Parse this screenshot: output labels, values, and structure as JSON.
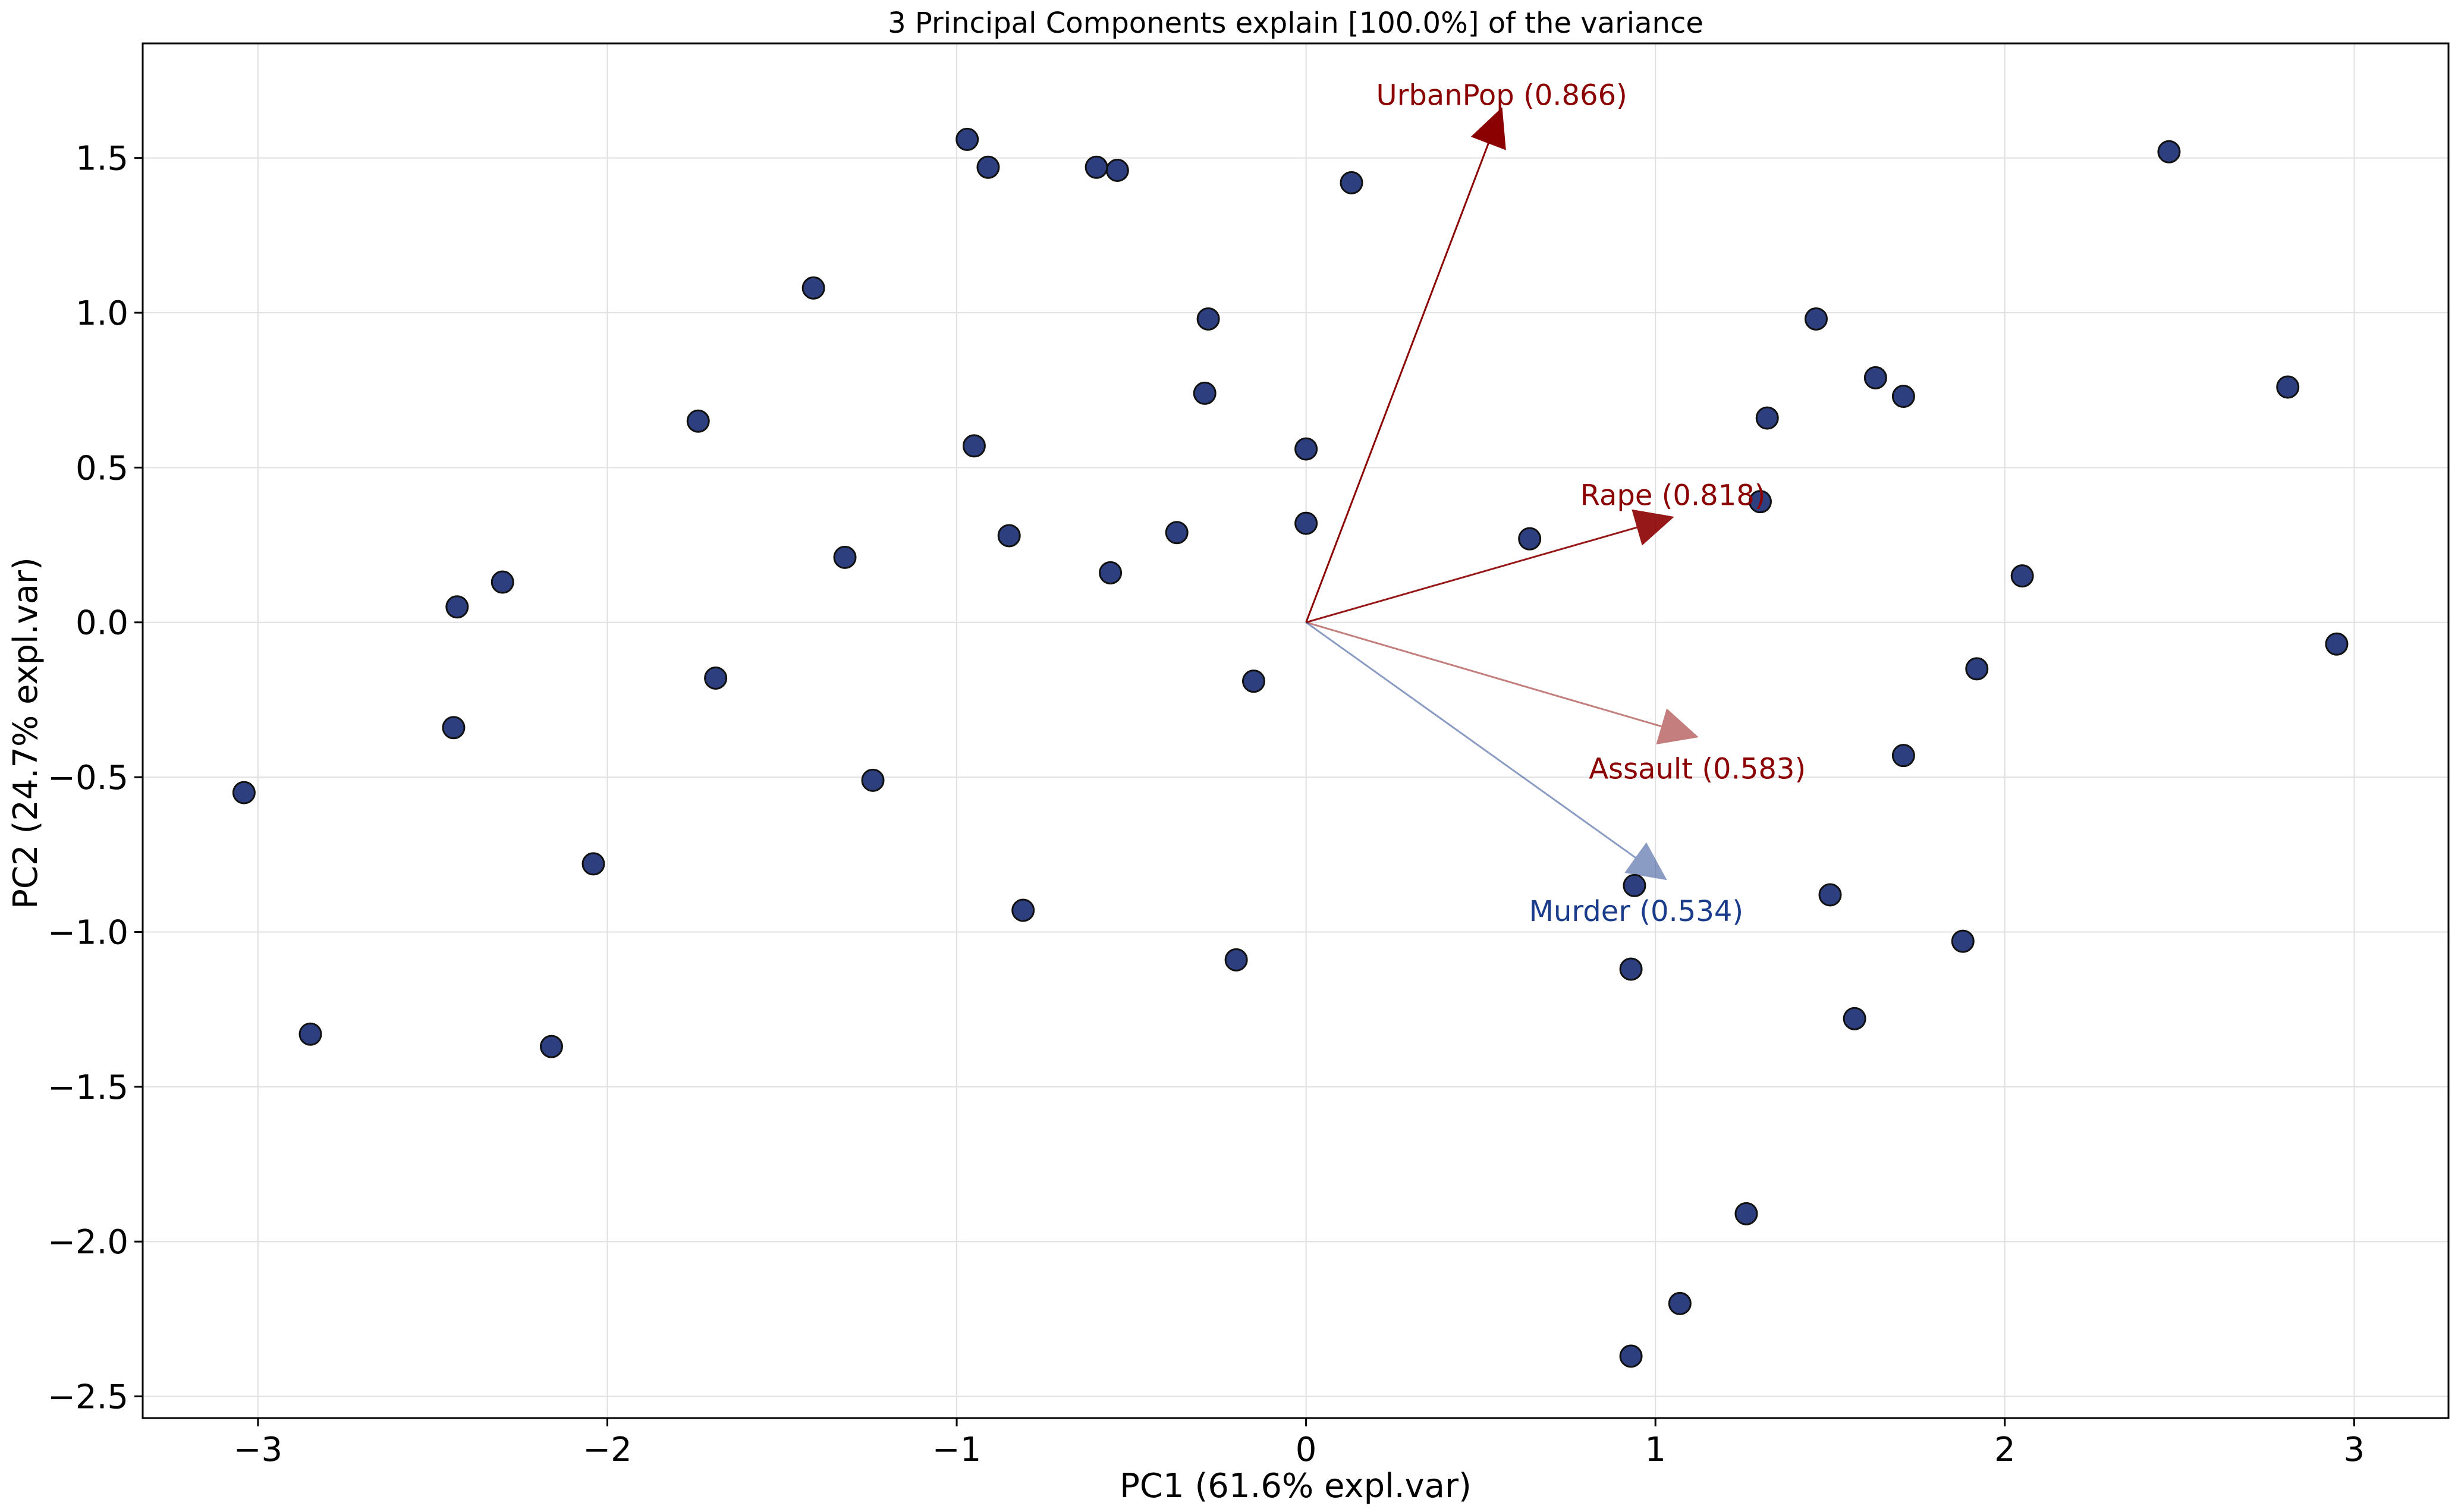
{
  "chart_data": {
    "type": "scatter",
    "title": "3 Principal Components explain [100.0%] of the variance",
    "xlabel": "PC1 (61.6% expl.var)",
    "ylabel": "PC2 (24.7% expl.var)",
    "xlim": [
      -3.33,
      3.27
    ],
    "ylim": [
      -2.57,
      1.87
    ],
    "xticks": [
      -3,
      -2,
      -1,
      0,
      1,
      2,
      3
    ],
    "xtick_labels": [
      "−3",
      "−2",
      "−1",
      "0",
      "1",
      "2",
      "3"
    ],
    "yticks": [
      -2.5,
      -2.0,
      -1.5,
      -1.0,
      -0.5,
      0.0,
      0.5,
      1.0,
      1.5
    ],
    "ytick_labels": [
      "−2.5",
      "−2.0",
      "−1.5",
      "−1.0",
      "−0.5",
      "0.0",
      "0.5",
      "1.0",
      "1.5"
    ],
    "grid": true,
    "point_color": "#2e3f7f",
    "points": [
      {
        "x": -3.04,
        "y": -0.55
      },
      {
        "x": -2.85,
        "y": -1.33
      },
      {
        "x": -2.43,
        "y": 0.05
      },
      {
        "x": -2.44,
        "y": -0.34
      },
      {
        "x": -2.3,
        "y": 0.13
      },
      {
        "x": -2.16,
        "y": -1.37
      },
      {
        "x": -2.04,
        "y": -0.78
      },
      {
        "x": -1.74,
        "y": 0.65
      },
      {
        "x": -1.69,
        "y": -0.18
      },
      {
        "x": -1.41,
        "y": 1.08
      },
      {
        "x": -1.32,
        "y": 0.21
      },
      {
        "x": -1.24,
        "y": -0.51
      },
      {
        "x": -0.97,
        "y": 1.56
      },
      {
        "x": -0.91,
        "y": 1.47
      },
      {
        "x": -0.95,
        "y": 0.57
      },
      {
        "x": -0.85,
        "y": 0.28
      },
      {
        "x": -0.81,
        "y": -0.93
      },
      {
        "x": -0.6,
        "y": 1.47
      },
      {
        "x": -0.54,
        "y": 1.46
      },
      {
        "x": -0.56,
        "y": 0.16
      },
      {
        "x": -0.37,
        "y": 0.29
      },
      {
        "x": -0.28,
        "y": 0.98
      },
      {
        "x": -0.29,
        "y": 0.74
      },
      {
        "x": -0.2,
        "y": -1.09
      },
      {
        "x": -0.15,
        "y": -0.19
      },
      {
        "x": 0.0,
        "y": 0.56
      },
      {
        "x": 0.0,
        "y": 0.32
      },
      {
        "x": 0.13,
        "y": 1.42
      },
      {
        "x": 0.64,
        "y": 0.27
      },
      {
        "x": 0.94,
        "y": -0.85
      },
      {
        "x": 0.93,
        "y": -1.12
      },
      {
        "x": 1.07,
        "y": -2.2
      },
      {
        "x": 0.93,
        "y": -2.37
      },
      {
        "x": 1.26,
        "y": -1.91
      },
      {
        "x": 1.3,
        "y": 0.39
      },
      {
        "x": 1.32,
        "y": 0.66
      },
      {
        "x": 1.46,
        "y": 0.98
      },
      {
        "x": 1.5,
        "y": -0.88
      },
      {
        "x": 1.57,
        "y": -1.28
      },
      {
        "x": 1.63,
        "y": 0.79
      },
      {
        "x": 1.71,
        "y": 0.73
      },
      {
        "x": 1.71,
        "y": -0.43
      },
      {
        "x": 1.88,
        "y": -1.03
      },
      {
        "x": 1.92,
        "y": -0.15
      },
      {
        "x": 2.05,
        "y": 0.15
      },
      {
        "x": 2.47,
        "y": 1.52
      },
      {
        "x": 2.81,
        "y": 0.76
      },
      {
        "x": 2.95,
        "y": -0.07
      }
    ],
    "loadings": [
      {
        "name": "UrbanPop",
        "label": "UrbanPop (0.866)",
        "x": 0.56,
        "y": 1.66,
        "color": "#8b0000",
        "opacity": 1.0
      },
      {
        "name": "Rape",
        "label": "Rape (0.818)",
        "x": 1.05,
        "y": 0.34,
        "color": "#8b0000",
        "opacity": 0.9
      },
      {
        "name": "Assault",
        "label": "Assault (0.583)",
        "x": 1.12,
        "y": -0.37,
        "color": "#8b0000",
        "opacity": 0.5
      },
      {
        "name": "Murder",
        "label": "Murder (0.534)",
        "x": 1.03,
        "y": -0.83,
        "color": "#1a3c8b",
        "opacity": 0.5
      }
    ]
  }
}
